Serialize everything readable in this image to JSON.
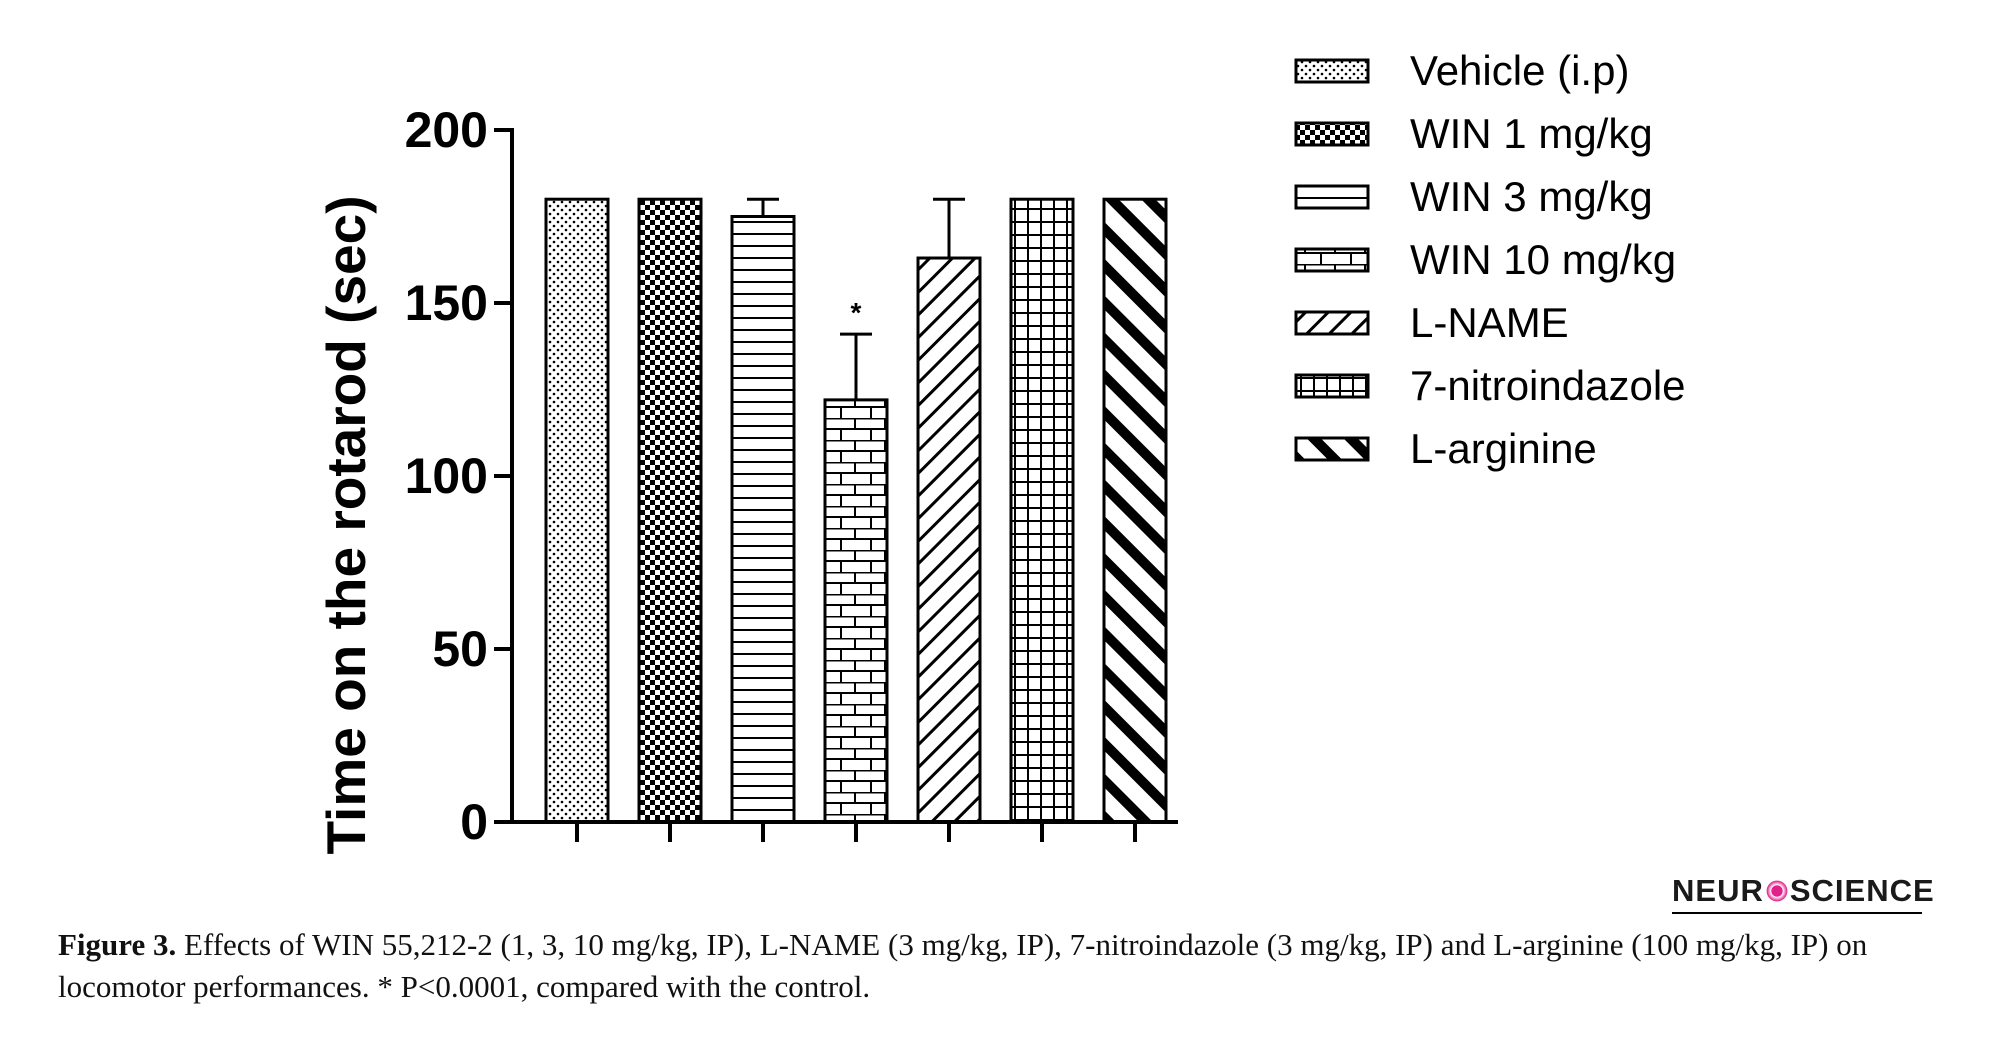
{
  "chart_data": {
    "type": "bar",
    "categories": [
      "Vehicle (i.p)",
      "WIN 1 mg/kg",
      "WIN 3 mg/kg",
      "WIN 10 mg/kg",
      "L-NAME",
      "7-nitroindazole",
      "L-arginine"
    ],
    "values": [
      180,
      180,
      175,
      122,
      163,
      180,
      180
    ],
    "errors": [
      0,
      0,
      5,
      19,
      17,
      0,
      0
    ],
    "patterns": [
      "dots",
      "checker",
      "hlines",
      "bricks",
      "diag-right",
      "grid",
      "diag-left"
    ],
    "ylabel": "Time on the rotarod (sec)",
    "xlabel": "",
    "ylim": [
      0,
      200
    ],
    "yticks": [
      "0",
      "50",
      "100",
      "150",
      "200"
    ],
    "annotations": [
      {
        "category": "WIN 10 mg/kg",
        "text": "*"
      }
    ],
    "legend": {
      "position": "top-right"
    }
  },
  "logo": {
    "left": "NEUR",
    "right": "SCIENCE"
  },
  "caption": {
    "label": "Figure 3.",
    "text": " Effects of WIN 55,212-2 (1, 3, 10 mg/kg, IP), L-NAME (3 mg/kg, IP), 7-nitroindazole (3 mg/kg, IP) and L-arginine (100 mg/kg, IP) on locomotor performances. * P<0.0001, compared with the control."
  }
}
